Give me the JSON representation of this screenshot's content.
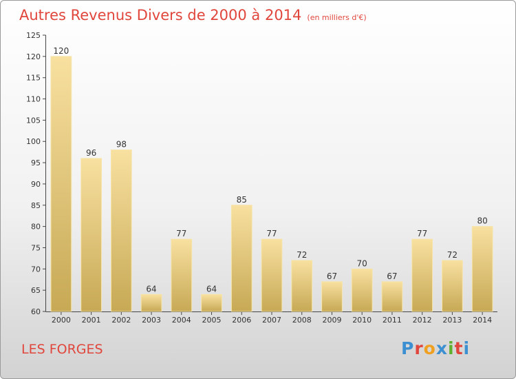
{
  "header": {
    "title": "Autres Revenus Divers de 2000 à 2014",
    "subtitle": "(en milliers d'€)"
  },
  "footer": {
    "town": "LES FORGES",
    "logo": "Proxiti"
  },
  "colors": {
    "title": "#e0463c",
    "bar_light": "#f8e0a0",
    "bar_dark": "#c7a955",
    "logo_letters": [
      "#3c8fd0",
      "#e0463c",
      "#f0a020",
      "#3c8fd0",
      "#60b030",
      "#e0463c",
      "#3c8fd0"
    ]
  },
  "chart_data": {
    "type": "bar",
    "title": "Autres Revenus Divers de 2000 à 2014",
    "subtitle": "(en milliers d'€)",
    "categories": [
      "2000",
      "2001",
      "2002",
      "2003",
      "2004",
      "2005",
      "2006",
      "2007",
      "2008",
      "2009",
      "2010",
      "2011",
      "2012",
      "2013",
      "2014"
    ],
    "values": [
      120,
      96,
      98,
      64,
      77,
      64,
      85,
      77,
      72,
      67,
      70,
      67,
      77,
      72,
      80
    ],
    "ylim": [
      60,
      125
    ],
    "yticks": [
      60,
      65,
      70,
      75,
      80,
      85,
      90,
      95,
      100,
      105,
      110,
      115,
      120,
      125
    ],
    "xlabel": "",
    "ylabel": "",
    "grid": false,
    "data_labels": true
  }
}
